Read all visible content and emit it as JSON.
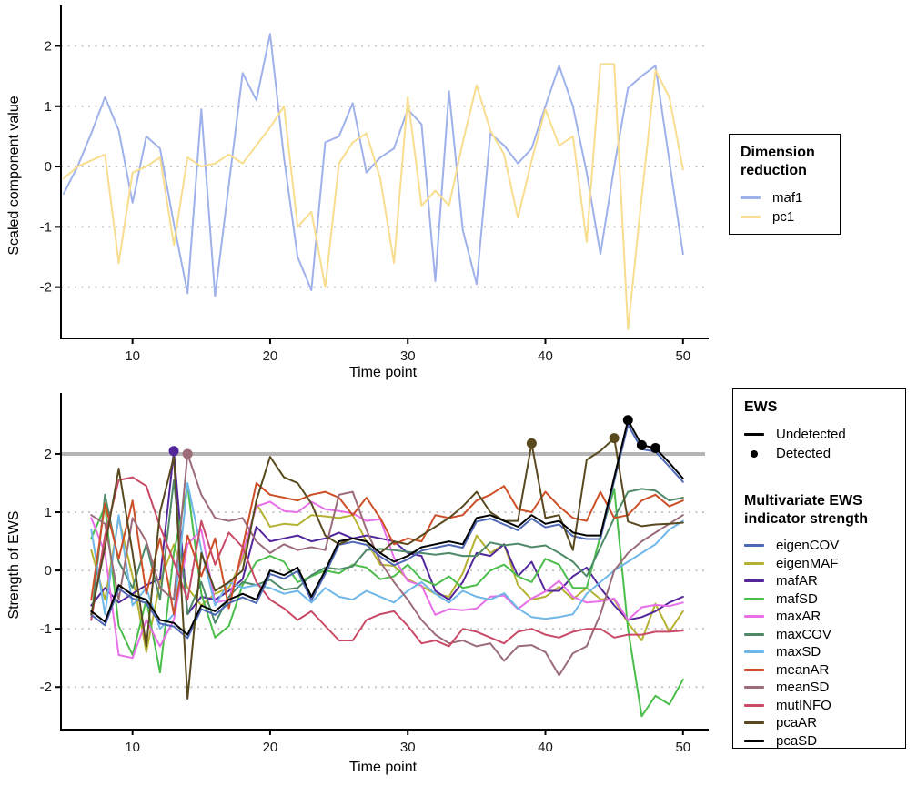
{
  "figure_title": "",
  "threshold_color": "#b5b5b5",
  "grid_color": "#c6c6c6",
  "axis_color": "#000000",
  "chart_data": [
    {
      "type": "line",
      "panel": "top",
      "xlabel": "Time point",
      "ylabel": "Scaled component value",
      "x_ticks": [
        10,
        20,
        30,
        40,
        50
      ],
      "y_ticks": [
        -2,
        -1,
        0,
        1,
        2
      ],
      "x_domain": [
        4.8,
        51.6
      ],
      "y_domain": [
        -2.85,
        2.55
      ],
      "x_start": 5,
      "grid": "horizontal-dotted",
      "legend_position": "right",
      "series": [
        {
          "name": "maf1",
          "color": "#9fb1ea",
          "values": [
            -0.45,
            0.0,
            0.55,
            1.15,
            0.6,
            -0.6,
            0.5,
            0.3,
            -0.95,
            -2.1,
            0.95,
            -2.15,
            -0.3,
            1.55,
            1.1,
            2.2,
            0.15,
            -1.5,
            -2.05,
            0.4,
            0.5,
            1.05,
            -0.1,
            0.15,
            0.3,
            0.95,
            0.7,
            -1.9,
            1.25,
            -1.05,
            -1.95,
            0.55,
            0.35,
            0.05,
            0.3,
            1.0,
            1.67,
            1.0,
            -0.1,
            -1.45,
            0.0,
            1.3,
            1.5,
            1.67,
            0.1,
            -1.45
          ]
        },
        {
          "name": "pc1",
          "color": "#f8dd8f",
          "values": [
            -0.2,
            0.0,
            0.1,
            0.2,
            -1.6,
            -0.1,
            0.0,
            0.15,
            -1.3,
            0.15,
            0.0,
            0.05,
            0.2,
            0.05,
            0.35,
            0.65,
            1.0,
            -1.0,
            -0.75,
            -2.0,
            0.05,
            0.4,
            0.55,
            -0.2,
            -1.6,
            1.15,
            -0.65,
            -0.4,
            -0.65,
            0.4,
            1.35,
            0.6,
            0.2,
            -0.85,
            0.1,
            0.95,
            0.35,
            0.5,
            -1.25,
            1.7,
            1.7,
            -2.7,
            -0.5,
            1.6,
            1.15,
            -0.05
          ]
        }
      ]
    },
    {
      "type": "line",
      "panel": "bottom",
      "xlabel": "Time point",
      "ylabel": "Strength of EWS",
      "x_ticks": [
        10,
        20,
        30,
        40,
        50
      ],
      "y_ticks": [
        -2,
        -1,
        0,
        1,
        2
      ],
      "x_domain": [
        4.8,
        51.6
      ],
      "y_domain": [
        -2.73,
        2.92
      ],
      "x_start": 7,
      "grid": "horizontal-dotted",
      "legend_position": "right",
      "threshold": {
        "value": 2,
        "width": 4
      },
      "series": [
        {
          "name": "eigenMAF",
          "color": "#b5b233",
          "values": [
            0.35,
            -0.5,
            0.9,
            -0.1,
            -1.4,
            -0.2,
            0.45,
            -0.3,
            -0.6,
            -0.4,
            -0.3,
            0.2,
            1.15,
            0.75,
            0.8,
            0.78,
            0.95,
            0.93,
            0.9,
            0.95,
            0.5,
            0.1,
            0.08,
            -0.15,
            -0.27,
            -0.4,
            -0.45,
            -0.05,
            0.6,
            0.3,
            0.45,
            -0.25,
            -0.5,
            -0.45,
            -0.28,
            -0.49,
            -0.3,
            -0.49,
            -0.5,
            -0.9,
            -1.2,
            -0.57,
            -1.05,
            -0.7
          ]
        },
        {
          "name": "mafAR",
          "color": "#53279b",
          "values": [
            -0.6,
            -0.3,
            -0.55,
            -0.4,
            -0.25,
            -0.15,
            2.05,
            -0.75,
            -0.45,
            -0.5,
            -0.35,
            -0.15,
            0.75,
            0.5,
            0.55,
            0.6,
            0.5,
            0.55,
            0.65,
            0.55,
            0.6,
            0.55,
            0.5,
            0.3,
            0.25,
            -0.35,
            -0.5,
            -0.2,
            0.3,
            0.25,
            0.45,
            -0.1,
            0.15,
            -0.35,
            -0.35,
            -0.1,
            0.05,
            -0.3,
            -0.6,
            -0.85,
            -0.8,
            -0.7,
            -0.55,
            -0.45
          ]
        },
        {
          "name": "mafSD",
          "color": "#4bbd4b",
          "values": [
            0.55,
            1.1,
            -0.95,
            -1.45,
            -0.5,
            -1.75,
            0.3,
            1.45,
            -0.4,
            -1.15,
            -0.95,
            -0.25,
            0.15,
            0.25,
            0.15,
            -0.2,
            -0.1,
            0.0,
            -0.05,
            0.1,
            0.05,
            -0.15,
            -0.1,
            0.1,
            -0.15,
            -0.25,
            -0.1,
            -0.3,
            -0.25,
            0.0,
            0.1,
            -0.1,
            -0.2,
            0.2,
            0.1,
            -0.3,
            -0.3,
            0.6,
            1.4,
            -1.0,
            -2.5,
            -2.15,
            -2.3,
            -1.87
          ]
        },
        {
          "name": "maxAR",
          "color": "#e86fe8",
          "values": [
            0.9,
            0.3,
            -1.45,
            -1.5,
            -0.85,
            -1.3,
            -0.85,
            0.45,
            0.7,
            -0.55,
            -0.5,
            0.3,
            1.1,
            1.18,
            1.02,
            1.0,
            1.18,
            1.05,
            1.02,
            0.98,
            0.85,
            0.88,
            0.22,
            -0.18,
            -0.26,
            -0.76,
            -0.66,
            -0.68,
            -0.65,
            -0.45,
            -0.43,
            -0.66,
            -0.48,
            -0.36,
            -0.18,
            -0.45,
            -0.55,
            -0.53,
            -0.48,
            -0.85,
            -0.63,
            -0.59,
            -0.61,
            -0.55
          ]
        },
        {
          "name": "maxCOV",
          "color": "#4e8a68",
          "values": [
            -0.85,
            1.3,
            0.15,
            -0.3,
            0.45,
            -0.5,
            1.55,
            -0.75,
            -0.2,
            -0.9,
            -0.45,
            -0.2,
            -0.25,
            -0.16,
            -0.33,
            -0.3,
            -0.08,
            0.05,
            0.02,
            0.07,
            0.35,
            0.37,
            0.35,
            0.32,
            0.3,
            0.27,
            0.3,
            0.25,
            0.25,
            0.48,
            0.43,
            0.46,
            0.4,
            0.43,
            0.3,
            0.15,
            -0.1,
            0.4,
            0.9,
            1.35,
            1.4,
            1.37,
            1.2,
            1.25
          ]
        },
        {
          "name": "maxSD",
          "color": "#6fb7e8",
          "values": [
            0.7,
            -0.75,
            0.95,
            -0.6,
            -0.3,
            -1.0,
            -0.75,
            1.5,
            0.35,
            -0.6,
            -0.2,
            -0.3,
            -0.25,
            -0.3,
            -0.4,
            -0.35,
            -0.55,
            -0.3,
            -0.45,
            -0.5,
            -0.35,
            -0.45,
            -0.55,
            -0.35,
            -0.2,
            -0.4,
            -0.55,
            -0.35,
            -0.45,
            -0.5,
            -0.39,
            -0.65,
            -0.8,
            -0.83,
            -0.8,
            -0.75,
            -0.4,
            -0.2,
            0.0,
            0.15,
            0.3,
            0.45,
            0.7,
            0.85
          ]
        },
        {
          "name": "meanAR",
          "color": "#cd4f27",
          "values": [
            -0.5,
            1.15,
            0.2,
            1.2,
            -0.4,
            0.55,
            -0.75,
            0.6,
            -0.1,
            0.55,
            -0.65,
            0.4,
            1.5,
            1.3,
            1.25,
            1.2,
            1.3,
            1.35,
            1.25,
            0.95,
            1.25,
            0.9,
            0.45,
            0.55,
            0.5,
            0.95,
            0.9,
            0.95,
            1.2,
            1.3,
            1.45,
            1.05,
            1.0,
            1.35,
            1.1,
            0.9,
            0.85,
            1.35,
            0.9,
            0.95,
            1.2,
            1.3,
            1.1,
            1.2
          ]
        },
        {
          "name": "meanSD",
          "color": "#9b6b78",
          "values": [
            0.95,
            0.8,
            -0.5,
            0.9,
            0.5,
            -0.3,
            -0.5,
            2.0,
            1.3,
            0.9,
            0.85,
            0.9,
            0.5,
            0.3,
            0.45,
            0.35,
            0.4,
            0.35,
            1.3,
            1.35,
            0.7,
            0.15,
            -0.2,
            -0.5,
            -0.85,
            -1.1,
            -1.25,
            -1.2,
            -1.3,
            -1.25,
            -1.55,
            -1.3,
            -1.28,
            -1.4,
            -1.8,
            -1.42,
            -1.3,
            -0.75,
            0.0,
            0.3,
            0.5,
            0.65,
            0.8,
            0.95
          ]
        },
        {
          "name": "mutINFO",
          "color": "#c94a66",
          "values": [
            -0.85,
            0.6,
            1.55,
            1.6,
            1.45,
            0.75,
            0.15,
            -0.5,
            0.85,
            0.1,
            0.65,
            0.4,
            -0.2,
            -0.5,
            -0.65,
            -0.85,
            -0.7,
            -0.95,
            -1.2,
            -1.2,
            -0.85,
            -0.75,
            -0.7,
            -0.95,
            -1.25,
            -1.2,
            -1.3,
            -1.0,
            -1.05,
            -1.15,
            -1.25,
            -1.05,
            -1.0,
            -1.1,
            -1.15,
            -1.05,
            -1.0,
            -1.0,
            -1.15,
            -1.1,
            -1.1,
            -1.05,
            -1.05,
            -1.03
          ]
        },
        {
          "name": "eigenCOV",
          "color": "#4f68b5",
          "values": [
            -0.76,
            -0.94,
            -0.31,
            -0.48,
            -0.56,
            -0.91,
            -0.96,
            -1.16,
            -0.66,
            -0.76,
            -0.56,
            -0.46,
            -0.56,
            -0.06,
            -0.14,
            -0.01,
            -0.51,
            -0.06,
            0.44,
            0.49,
            0.44,
            0.24,
            0.09,
            0.19,
            0.34,
            0.39,
            0.44,
            0.39,
            0.84,
            0.89,
            0.79,
            0.69,
            0.89,
            0.74,
            0.79,
            0.59,
            0.54,
            0.54,
            1.54,
            2.5,
            2.08,
            2.04,
            1.78,
            1.52
          ]
        },
        {
          "name": "pcaAR",
          "color": "#59491f",
          "values": [
            -0.75,
            0.4,
            1.75,
            0.3,
            -1.3,
            1.0,
            1.95,
            -2.2,
            0.3,
            -0.35,
            -0.2,
            0.0,
            1.2,
            1.95,
            1.6,
            1.5,
            1.15,
            0.6,
            0.45,
            0.55,
            0.5,
            0.3,
            0.5,
            0.45,
            0.6,
            0.75,
            0.9,
            1.1,
            1.35,
            1.0,
            0.85,
            0.85,
            2.18,
            0.9,
            0.95,
            0.35,
            1.9,
            2.05,
            2.27,
            0.84,
            0.76,
            0.79,
            0.8,
            0.82
          ]
        },
        {
          "name": "pcaSD",
          "color": "#000000",
          "values": [
            -0.7,
            -0.88,
            -0.25,
            -0.42,
            -0.5,
            -0.85,
            -0.9,
            -1.1,
            -0.6,
            -0.7,
            -0.5,
            -0.4,
            -0.5,
            0.0,
            -0.08,
            0.05,
            -0.45,
            0.0,
            0.5,
            0.55,
            0.5,
            0.3,
            0.15,
            0.25,
            0.4,
            0.45,
            0.5,
            0.45,
            0.9,
            0.95,
            0.85,
            0.75,
            0.95,
            0.8,
            0.85,
            0.65,
            0.6,
            0.6,
            1.6,
            2.58,
            2.15,
            2.1,
            1.85,
            1.58
          ]
        }
      ],
      "detected_points": [
        {
          "series": "mafAR",
          "t": 13,
          "v": 2.05,
          "color": "#53279b"
        },
        {
          "series": "meanSD",
          "t": 14,
          "v": 2.0,
          "color": "#9b6b78"
        },
        {
          "series": "pcaAR",
          "t": 39,
          "v": 2.18,
          "color": "#59491f"
        },
        {
          "series": "pcaAR",
          "t": 45,
          "v": 2.27,
          "color": "#59491f"
        },
        {
          "series": "pcaSD",
          "t": 46,
          "v": 2.58,
          "color": "#000000"
        },
        {
          "series": "pcaSD",
          "t": 47,
          "v": 2.15,
          "color": "#000000"
        },
        {
          "series": "pcaSD",
          "t": 48,
          "v": 2.1,
          "color": "#000000"
        }
      ]
    }
  ],
  "axis": {
    "top_ylabel": "Scaled component value",
    "top_xlabel": "Time point",
    "bottom_ylabel": "Strength of EWS",
    "bottom_xlabel": "Time point"
  },
  "legend_dimension": {
    "title_line1": "Dimension",
    "title_line2": "reduction",
    "items": [
      {
        "label": "maf1",
        "color": "#9fb1ea"
      },
      {
        "label": "pc1",
        "color": "#f8dd8f"
      }
    ]
  },
  "legend_ews": {
    "title": "EWS",
    "undetected_label": "Undetected",
    "detected_label": "Detected",
    "subtitle_line1": "Multivariate EWS",
    "subtitle_line2": "indicator strength",
    "items": [
      {
        "label": "eigenCOV",
        "color": "#4f68b5"
      },
      {
        "label": "eigenMAF",
        "color": "#b5b233"
      },
      {
        "label": "mafAR",
        "color": "#53279b"
      },
      {
        "label": "mafSD",
        "color": "#4bbd4b"
      },
      {
        "label": "maxAR",
        "color": "#e86fe8"
      },
      {
        "label": "maxCOV",
        "color": "#4e8a68"
      },
      {
        "label": "maxSD",
        "color": "#6fb7e8"
      },
      {
        "label": "meanAR",
        "color": "#cd4f27"
      },
      {
        "label": "meanSD",
        "color": "#9b6b78"
      },
      {
        "label": "mutINFO",
        "color": "#c94a66"
      },
      {
        "label": "pcaAR",
        "color": "#59491f"
      },
      {
        "label": "pcaSD",
        "color": "#000000"
      }
    ]
  }
}
